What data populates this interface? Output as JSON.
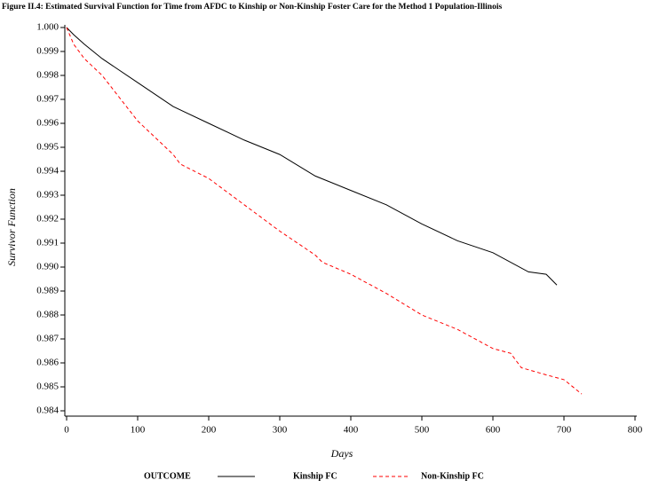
{
  "chart_data": {
    "type": "line",
    "title": "Figure II.4:  Estimated Survival Function for Time from AFDC to Kinship or Non-Kinship Foster Care for the Method 1 Population-Illinois",
    "x_label": "Days",
    "y_label": "Survivor Function",
    "legend_title": "OUTCOME",
    "xlim": [
      0,
      800
    ],
    "xticks": [
      0,
      100,
      200,
      300,
      400,
      500,
      600,
      700,
      800
    ],
    "ylim": [
      0.984,
      1.0
    ],
    "yticks": [
      {
        "value": 0.984,
        "label": "0.984"
      },
      0.985,
      0.986,
      0.987,
      0.988,
      0.989,
      {
        "value": 0.99,
        "label": "0.990"
      },
      0.991,
      0.992,
      0.993,
      0.994,
      0.995,
      0.996,
      0.997,
      0.998,
      0.999,
      {
        "value": 1.0,
        "label": "1.000"
      }
    ],
    "series": [
      {
        "name": "Kinship FC",
        "color": "#000000",
        "dashed": false,
        "x": [
          0,
          10,
          25,
          50,
          100,
          150,
          200,
          250,
          300,
          350,
          400,
          450,
          500,
          550,
          600,
          650,
          675,
          690
        ],
        "values": [
          1.0,
          0.9997,
          0.9993,
          0.9987,
          0.9977,
          0.9967,
          0.996,
          0.9953,
          0.9947,
          0.9938,
          0.9932,
          0.9926,
          0.9918,
          0.9911,
          0.9906,
          0.9898,
          0.9897,
          0.98925
        ]
      },
      {
        "name": "Non-Kinship FC",
        "color": "#ff0000",
        "dashed": true,
        "x": [
          0,
          10,
          25,
          50,
          100,
          150,
          160,
          200,
          250,
          300,
          350,
          360,
          400,
          450,
          500,
          550,
          600,
          625,
          640,
          675,
          700,
          725
        ],
        "values": [
          1.0,
          0.9993,
          0.9987,
          0.998,
          0.9961,
          0.9947,
          0.9943,
          0.9937,
          0.9926,
          0.9915,
          0.9905,
          0.9902,
          0.9897,
          0.9889,
          0.988,
          0.9874,
          0.9866,
          0.9864,
          0.9858,
          0.9855,
          0.9853,
          0.9847
        ]
      }
    ]
  }
}
